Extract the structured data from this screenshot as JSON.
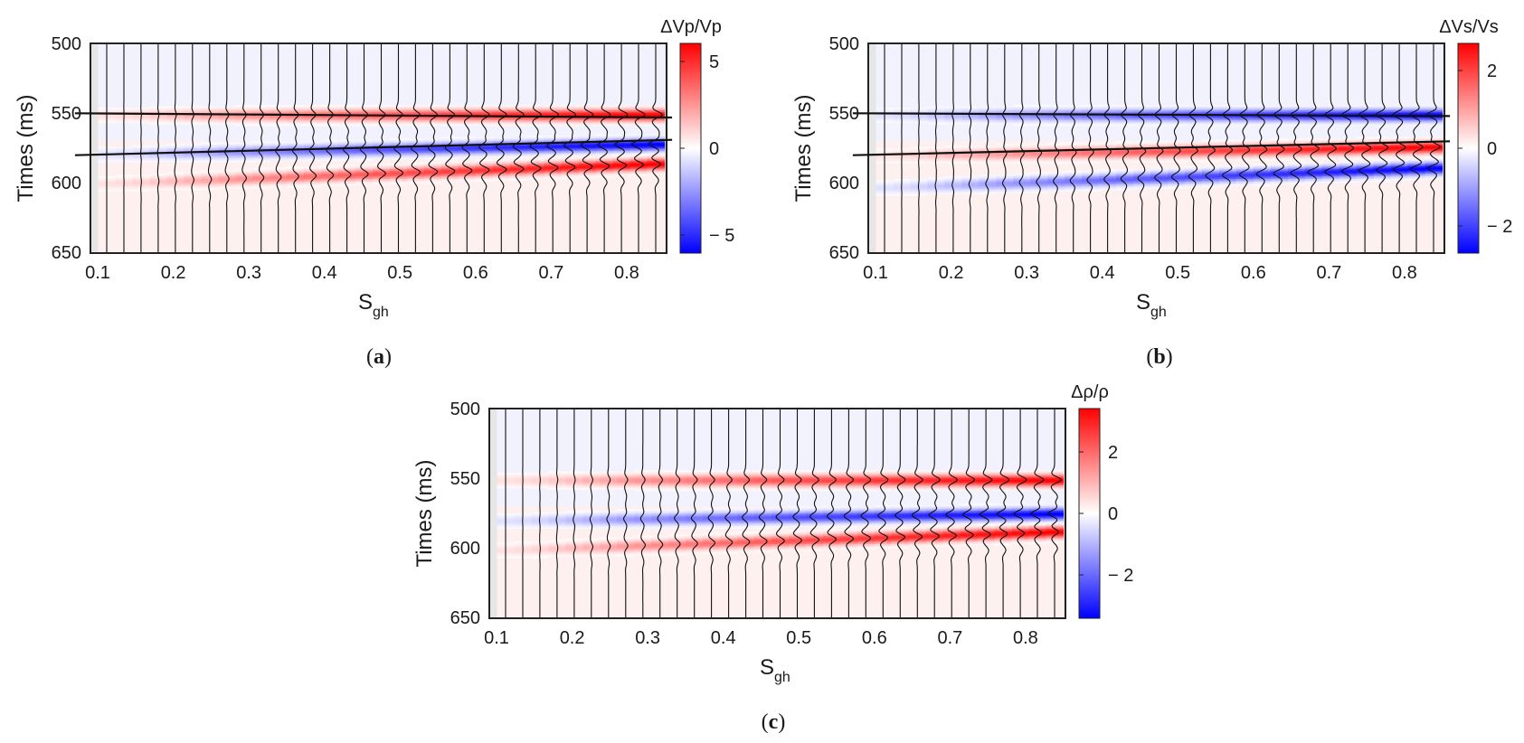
{
  "figure": {
    "panels": [
      {
        "id": "a",
        "caption_letter": "a",
        "ylabel": "Times (ms)",
        "xlabel_main": "S",
        "xlabel_sub": "gh",
        "colorbar_title": "ΔVp/Vp",
        "colorbar_ticks": [
          "5",
          "0",
          "− 5"
        ]
      },
      {
        "id": "b",
        "caption_letter": "b",
        "ylabel": "Times (ms)",
        "xlabel_main": "S",
        "xlabel_sub": "gh",
        "colorbar_title": "ΔVs/Vs",
        "colorbar_ticks": [
          "2",
          "0",
          "− 2"
        ]
      },
      {
        "id": "c",
        "caption_letter": "c",
        "ylabel": "Times (ms)",
        "xlabel_main": "S",
        "xlabel_sub": "gh",
        "colorbar_title": "Δρ/ρ",
        "colorbar_ticks": [
          "2",
          "0",
          "− 2"
        ]
      }
    ]
  },
  "chart_data": [
    {
      "panel": "a",
      "type": "heatmap",
      "title": "",
      "colorbar_label": "ΔVp/Vp",
      "colorbar_range": [
        -6,
        6
      ],
      "colorbar_tick_values": [
        5,
        0,
        -5
      ],
      "x_ticks": [
        "0.1",
        "0.2",
        "0.3",
        "0.4",
        "0.5",
        "0.6",
        "0.7",
        "0.8"
      ],
      "y_ticks": [
        "500",
        "550",
        "600",
        "650"
      ],
      "xlim": [
        0.1,
        0.83
      ],
      "ylim": [
        500,
        650
      ],
      "y_reversed": true,
      "trace_count": 33,
      "wavelet_amplitude": [
        0.0,
        0.02,
        0.05,
        0.09,
        0.13,
        0.17,
        0.21,
        0.25,
        0.28,
        0.31,
        0.34,
        0.37,
        0.4,
        0.42,
        0.45,
        0.47,
        0.5,
        0.52,
        0.54,
        0.56,
        0.58,
        0.6,
        0.62,
        0.64,
        0.66,
        0.68,
        0.7,
        0.72,
        0.74,
        0.75,
        0.77,
        0.79,
        0.8
      ],
      "events": [
        {
          "name": "red band",
          "t_start": 551,
          "t_end": 551,
          "polarity": 1
        },
        {
          "name": "lower blue band",
          "t_start": 579,
          "t_end": 572,
          "polarity": -1
        },
        {
          "name": "lower red band",
          "t_start": 600,
          "t_end": 586,
          "polarity": 1
        }
      ],
      "horizon_lines": [
        {
          "x": [
            0.07,
            0.86
          ],
          "t": [
            550,
            553
          ]
        },
        {
          "x": [
            0.07,
            0.86
          ],
          "t": [
            580,
            569
          ]
        }
      ]
    },
    {
      "panel": "b",
      "type": "heatmap",
      "title": "",
      "colorbar_label": "ΔVs/Vs",
      "colorbar_range": [
        -2.7,
        2.7
      ],
      "colorbar_tick_values": [
        2,
        0,
        -2
      ],
      "x_ticks": [
        "0.1",
        "0.2",
        "0.3",
        "0.4",
        "0.5",
        "0.6",
        "0.7",
        "0.8"
      ],
      "y_ticks": [
        "500",
        "550",
        "600",
        "650"
      ],
      "xlim": [
        0.1,
        0.83
      ],
      "ylim": [
        500,
        650
      ],
      "y_reversed": true,
      "trace_count": 33,
      "wavelet_amplitude": [
        0.0,
        0.02,
        0.05,
        0.09,
        0.13,
        0.17,
        0.21,
        0.25,
        0.28,
        0.31,
        0.34,
        0.37,
        0.4,
        0.42,
        0.45,
        0.47,
        0.5,
        0.52,
        0.54,
        0.56,
        0.58,
        0.6,
        0.62,
        0.64,
        0.66,
        0.68,
        0.7,
        0.72,
        0.74,
        0.75,
        0.77,
        0.79,
        0.8
      ],
      "events": [
        {
          "name": "blue band",
          "t_start": 551,
          "t_end": 551,
          "polarity": -1
        },
        {
          "name": "lower red band",
          "t_start": 580,
          "t_end": 574,
          "polarity": 1
        },
        {
          "name": "lower blue band",
          "t_start": 603,
          "t_end": 589,
          "polarity": -1
        }
      ],
      "horizon_lines": [
        {
          "x": [
            0.07,
            0.86
          ],
          "t": [
            550,
            552
          ]
        },
        {
          "x": [
            0.07,
            0.86
          ],
          "t": [
            580,
            570
          ]
        }
      ]
    },
    {
      "panel": "c",
      "type": "heatmap",
      "title": "",
      "colorbar_label": "Δρ/ρ",
      "colorbar_range": [
        -3.4,
        3.4
      ],
      "colorbar_tick_values": [
        2,
        0,
        -2
      ],
      "x_ticks": [
        "0.1",
        "0.2",
        "0.3",
        "0.4",
        "0.5",
        "0.6",
        "0.7",
        "0.8"
      ],
      "y_ticks": [
        "500",
        "550",
        "600",
        "650"
      ],
      "xlim": [
        0.1,
        0.83
      ],
      "ylim": [
        500,
        650
      ],
      "y_reversed": true,
      "trace_count": 33,
      "wavelet_amplitude": [
        0.0,
        0.02,
        0.05,
        0.09,
        0.13,
        0.17,
        0.21,
        0.25,
        0.28,
        0.31,
        0.34,
        0.37,
        0.4,
        0.42,
        0.45,
        0.47,
        0.5,
        0.52,
        0.54,
        0.56,
        0.58,
        0.6,
        0.62,
        0.64,
        0.66,
        0.68,
        0.7,
        0.72,
        0.74,
        0.75,
        0.77,
        0.79,
        0.8
      ],
      "events": [
        {
          "name": "red band",
          "t_start": 551,
          "t_end": 551,
          "polarity": 1
        },
        {
          "name": "lower blue band",
          "t_start": 580,
          "t_end": 575,
          "polarity": -1
        },
        {
          "name": "lower red band",
          "t_start": 601,
          "t_end": 588,
          "polarity": 1
        }
      ],
      "horizon_lines": []
    }
  ]
}
